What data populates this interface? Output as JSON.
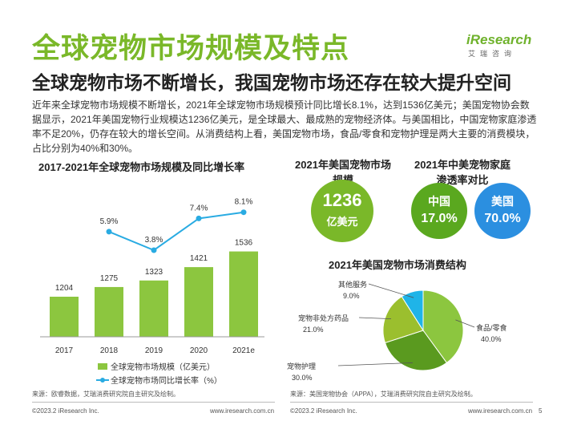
{
  "page": {
    "title": "全球宠物市场规模及特点",
    "subtitle": "全球宠物市场不断增长，我国宠物市场还存在较大提升空间",
    "logo_text": "iResearch",
    "logo_sub": "艾瑞咨询",
    "intro": "近年来全球宠物市场规模不断增长，2021年全球宠物市场规模预计同比增长8.1%，达到1536亿美元；美国宠物协会数据显示，2021年美国宠物行业规模达1236亿美元，是全球最大、最成熟的宠物经济体。与美国相比，中国宠物家庭渗透率不足20%，仍存在较大的增长空间。从消费结构上看，美国宠物市场，食品/零食和宠物护理是两大主要的消费模块，占比分别为40%和30%。",
    "page_number": "5"
  },
  "colors": {
    "accent": "#7ab829",
    "bar": "#8cc63f",
    "line": "#29abe2",
    "pie": [
      "#8cc63f",
      "#5a9a1f",
      "#9bbf2e",
      "#1fb4e8"
    ]
  },
  "left_footer": {
    "source": "来源：欧睿数据，艾瑞消费研究院自主研究及绘制。",
    "copyright": "©2023.2 iResearch Inc.",
    "url": "www.iresearch.com.cn"
  },
  "right_footer": {
    "source": "来源：美国宠物协会（APPA），艾瑞消费研究院自主研究及绘制。",
    "copyright": "©2023.2 iResearch Inc.",
    "url": "www.iresearch.com.cn"
  },
  "us_market": {
    "title": "2021年美国宠物市场规模",
    "value": "1236",
    "unit": "亿美元"
  },
  "penetration": {
    "title": "2021年中美宠物家庭渗透率对比",
    "china_label": "中国",
    "china_value": "17.0%",
    "usa_label": "美国",
    "usa_value": "70.0%"
  },
  "chart_data": [
    {
      "type": "bar",
      "title": "2017-2021年全球宠物市场规模及同比增长率",
      "categories": [
        "2017",
        "2018",
        "2019",
        "2020",
        "2021e"
      ],
      "series": [
        {
          "name": "全球宠物市场规模（亿美元）",
          "type": "bar",
          "values": [
            1204,
            1275,
            1323,
            1421,
            1536
          ]
        },
        {
          "name": "全球宠物市场同比增长率（%）",
          "type": "line",
          "values": [
            null,
            5.9,
            3.8,
            7.4,
            8.1
          ],
          "labels": [
            "",
            "5.9%",
            "3.8%",
            "7.4%",
            "8.1%"
          ]
        }
      ],
      "legend_position": "bottom",
      "grid": false
    },
    {
      "type": "pie",
      "title": "2021年美国宠物市场消费结构",
      "slices": [
        {
          "label": "食品/零食",
          "value": 40.0,
          "value_label": "40.0%"
        },
        {
          "label": "宠物护理",
          "value": 30.0,
          "value_label": "30.0%"
        },
        {
          "label": "宠物非处方药品",
          "value": 21.0,
          "value_label": "21.0%"
        },
        {
          "label": "其他服务",
          "value": 9.0,
          "value_label": "9.0%"
        }
      ]
    }
  ]
}
